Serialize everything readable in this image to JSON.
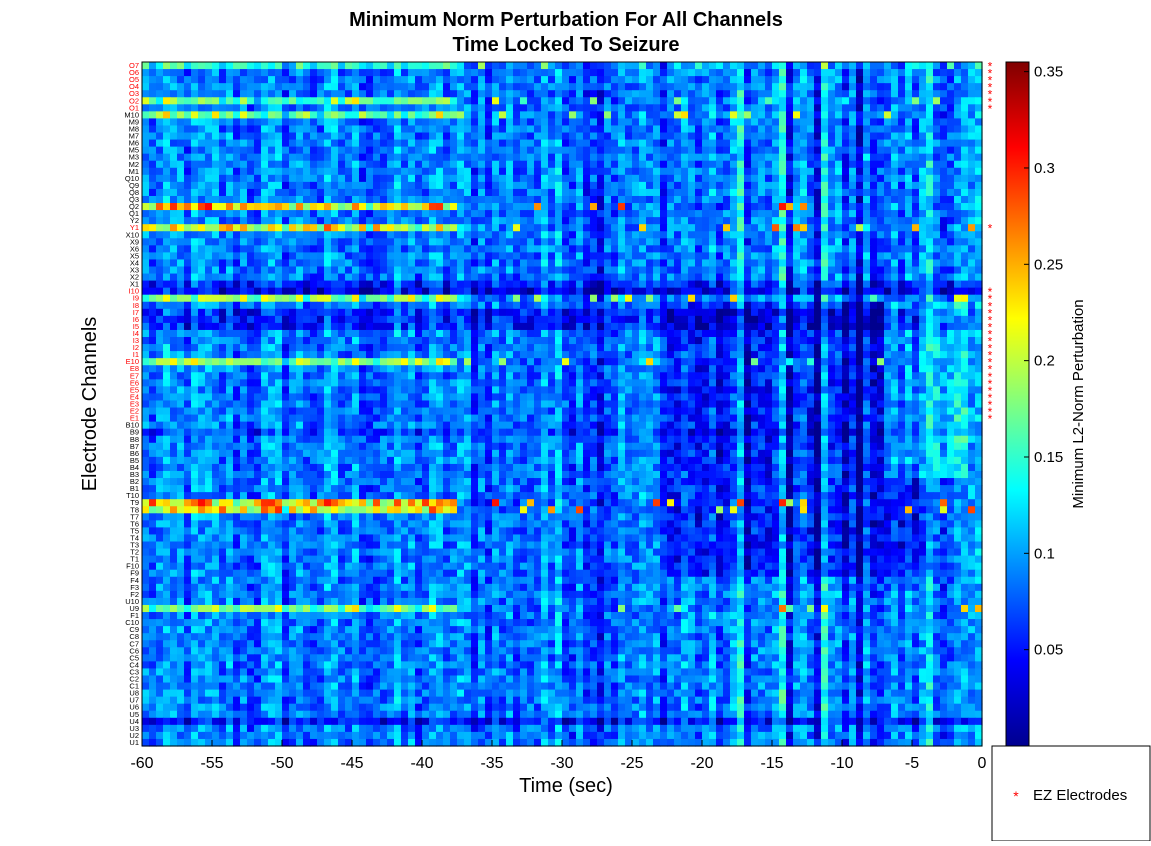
{
  "chart_data": {
    "type": "heatmap",
    "title_line1": "Minimum Norm Perturbation For All Channels",
    "title_line2": "Time Locked To Seizure",
    "xlabel": "Time (sec)",
    "ylabel": "Electrode Channels",
    "colorbar_label": "Minimum L2-Norm Perturbation",
    "xlim": [
      -60,
      0
    ],
    "xticks": [
      "-60",
      "-55",
      "-50",
      "-45",
      "-40",
      "-35",
      "-30",
      "-25",
      "-20",
      "-15",
      "-10",
      "-5",
      "0"
    ],
    "color_range": [
      0.0,
      0.355
    ],
    "colorbar_ticks": [
      "0.05",
      "0.1",
      "0.15",
      "0.2",
      "0.25",
      "0.3",
      "0.35"
    ],
    "colormap": "jet",
    "time_bins": 120,
    "channels": [
      "O7",
      "O6",
      "O5",
      "O4",
      "O3",
      "O2",
      "O1",
      "M10",
      "M9",
      "M8",
      "M7",
      "M6",
      "M5",
      "M3",
      "M2",
      "M1",
      "Q10",
      "Q9",
      "Q8",
      "Q3",
      "Q2",
      "Q1",
      "Y2",
      "Y1",
      "X10",
      "X9",
      "X6",
      "X5",
      "X4",
      "X3",
      "X2",
      "X1",
      "I10",
      "I9",
      "I8",
      "I7",
      "I6",
      "I5",
      "I4",
      "I3",
      "I2",
      "I1",
      "E10",
      "E8",
      "E7",
      "E6",
      "E5",
      "E4",
      "E3",
      "E2",
      "E1",
      "B10",
      "B9",
      "B8",
      "B7",
      "B6",
      "B5",
      "B4",
      "B3",
      "B2",
      "B1",
      "T10",
      "T9",
      "T8",
      "T7",
      "T6",
      "T5",
      "T4",
      "T3",
      "T2",
      "T1",
      "F10",
      "F9",
      "F4",
      "F3",
      "F2",
      "U10",
      "U9",
      "F1",
      "C10",
      "C9",
      "C8",
      "C7",
      "C6",
      "C5",
      "C4",
      "C3",
      "C2",
      "C1",
      "U8",
      "U7",
      "U6",
      "U5",
      "U4",
      "U3",
      "U2",
      "U1"
    ],
    "ez_channels": [
      "O7",
      "O6",
      "O5",
      "O4",
      "O3",
      "O2",
      "O1",
      "Y1",
      "I10",
      "I9",
      "I8",
      "I7",
      "I6",
      "I5",
      "I4",
      "I3",
      "I2",
      "I1",
      "E10",
      "E8",
      "E7",
      "E6",
      "E5",
      "E4",
      "E3",
      "E2",
      "E1"
    ],
    "legend": {
      "marker": "*",
      "label": "EZ Electrodes",
      "position": "bottom-right"
    },
    "colors": {
      "ez_label": "#ff0000",
      "normal_label": "#000000",
      "marker": "#ff0000"
    }
  }
}
